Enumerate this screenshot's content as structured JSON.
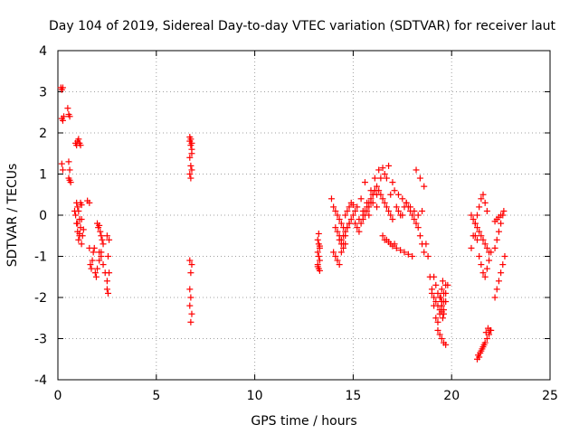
{
  "chart_data": {
    "type": "scatter",
    "title": "Day 104 of 2019, Sidereal Day-to-day VTEC variation (SDTVAR) for receiver laut",
    "xlabel": "GPS time / hours",
    "ylabel": "SDTVAR / TECUs",
    "xlim": [
      0,
      25
    ],
    "ylim": [
      -4,
      4
    ],
    "x_ticks": [
      0,
      5,
      10,
      15,
      20,
      25
    ],
    "y_ticks": [
      -4,
      -3,
      -2,
      -1,
      0,
      1,
      2,
      3,
      4
    ],
    "grid": true,
    "marker": "plus",
    "color": "#ff0000",
    "series": [
      {
        "name": "SDTVAR",
        "x": [
          0.15,
          0.2,
          0.25,
          0.2,
          0.25,
          0.3,
          0.2,
          0.25,
          0.5,
          0.55,
          0.6,
          0.55,
          0.6,
          0.55,
          0.65,
          0.6,
          0.9,
          0.95,
          1.0,
          1.05,
          1.1,
          1.15,
          0.85,
          0.9,
          0.95,
          1.0,
          1.05,
          1.1,
          1.15,
          1.2,
          0.95,
          1.0,
          1.05,
          1.1,
          1.15,
          1.2,
          1.25,
          1.3,
          1.0,
          1.1,
          1.2,
          1.5,
          1.6,
          1.6,
          1.65,
          1.7,
          1.75,
          1.8,
          1.85,
          1.9,
          1.95,
          2.0,
          2.1,
          2.2,
          2.0,
          2.05,
          2.1,
          2.15,
          2.2,
          2.25,
          2.3,
          2.1,
          2.2,
          2.3,
          2.4,
          2.5,
          2.5,
          2.55,
          2.6,
          2.55,
          2.5,
          2.6,
          6.7,
          6.7,
          6.75,
          6.75,
          6.8,
          6.8,
          6.7,
          6.75,
          6.8,
          6.7,
          6.75,
          6.8,
          6.8,
          6.75,
          6.7,
          6.75,
          6.7,
          6.8,
          6.75,
          6.7,
          13.2,
          13.25,
          13.3,
          13.2,
          13.25,
          13.3,
          13.2,
          13.25,
          13.3,
          13.25,
          13.2,
          13.3,
          13.9,
          14.0,
          14.1,
          14.2,
          14.3,
          14.4,
          14.5,
          14.6,
          14.7,
          14.8,
          14.9,
          15.0,
          14.0,
          14.1,
          14.2,
          14.3,
          14.4,
          14.5,
          14.6,
          14.7,
          14.8,
          14.9,
          15.0,
          15.1,
          14.1,
          14.2,
          14.3,
          14.4,
          14.5,
          14.6,
          14.7,
          14.8,
          14.3,
          14.4,
          14.5,
          14.6,
          15.1,
          15.2,
          15.3,
          15.4,
          15.5,
          15.6,
          15.7,
          15.8,
          15.9,
          16.0,
          16.1,
          16.2,
          16.3,
          16.4,
          16.5,
          16.6,
          16.7,
          16.8,
          16.9,
          17.0,
          15.2,
          15.4,
          15.6,
          15.8,
          16.0,
          16.2,
          16.4,
          16.6,
          16.8,
          17.0,
          15.3,
          15.5,
          15.7,
          15.9,
          16.1,
          16.3,
          16.5,
          16.7,
          16.9,
          15.5,
          15.6,
          15.7,
          15.8,
          15.9,
          16.0,
          16.1,
          16.2,
          16.5,
          16.6,
          16.7,
          16.8,
          16.9,
          17.0,
          17.1,
          17.2,
          17.3,
          17.4,
          17.5,
          17.6,
          17.7,
          17.8,
          17.9,
          18.0,
          18.1,
          18.2,
          18.3,
          18.4,
          18.5,
          18.6,
          17.2,
          17.4,
          17.6,
          17.8,
          18.0,
          18.2,
          18.4,
          18.6,
          17.1,
          17.3,
          17.5,
          17.7,
          17.9,
          18.1,
          18.3,
          18.5,
          18.7,
          18.8,
          18.9,
          19.0,
          19.1,
          19.2,
          19.3,
          19.4,
          19.5,
          19.6,
          19.7,
          19.8,
          19.0,
          19.1,
          19.2,
          19.3,
          19.4,
          19.5,
          19.6,
          19.7,
          19.1,
          19.2,
          19.3,
          19.4,
          19.5,
          19.6,
          19.7,
          19.3,
          19.4,
          19.5,
          19.6,
          19.7,
          19.6,
          19.55,
          19.5,
          19.45,
          19.5,
          19.55,
          21.0,
          21.1,
          21.2,
          21.3,
          21.4,
          21.5,
          21.6,
          21.7,
          21.8,
          21.0,
          21.1,
          21.2,
          21.3,
          21.4,
          21.5,
          21.6,
          21.7,
          21.8,
          21.9,
          21.2,
          21.3,
          21.4,
          21.5,
          21.6,
          21.7,
          21.8,
          21.9,
          22.0,
          21.3,
          21.4,
          21.5,
          21.6,
          21.7,
          21.8,
          21.9,
          22.0,
          21.35,
          21.45,
          21.55,
          21.65,
          21.75,
          21.85,
          21.95,
          22.2,
          22.3,
          22.4,
          22.5,
          22.6,
          22.7,
          22.2,
          22.3,
          22.4,
          22.5,
          22.6,
          22.65,
          22.2,
          22.3,
          22.4,
          22.5
        ],
        "y": [
          3.1,
          3.05,
          3.1,
          2.35,
          2.3,
          2.4,
          1.25,
          1.1,
          2.6,
          2.45,
          2.4,
          0.9,
          0.85,
          1.3,
          0.8,
          1.1,
          1.75,
          1.7,
          1.8,
          1.85,
          1.75,
          1.7,
          0.1,
          0.0,
          -0.2,
          -0.4,
          -0.6,
          -0.45,
          -0.3,
          -0.1,
          0.3,
          0.2,
          0.1,
          -0.1,
          0.3,
          0.25,
          -0.5,
          -0.35,
          -0.2,
          -0.5,
          -0.7,
          0.35,
          0.3,
          -0.8,
          -1.2,
          -1.3,
          -1.1,
          -0.9,
          -0.8,
          -1.4,
          -1.5,
          -1.3,
          -1.1,
          -0.9,
          -0.2,
          -0.3,
          -0.25,
          -0.4,
          -0.5,
          -0.6,
          -0.7,
          -0.9,
          -1.0,
          -1.2,
          -1.4,
          -1.6,
          -1.8,
          -1.9,
          -1.4,
          -1.0,
          -0.5,
          -0.6,
          1.9,
          1.8,
          1.85,
          1.7,
          1.6,
          1.5,
          1.4,
          1.2,
          1.1,
          1.0,
          0.9,
          1.75,
          -1.2,
          -1.4,
          -1.8,
          -2.0,
          -2.2,
          -2.4,
          -2.6,
          -1.1,
          -0.6,
          -0.7,
          -0.8,
          -0.9,
          -1.0,
          -1.1,
          -1.2,
          -1.3,
          -1.35,
          -0.45,
          -1.25,
          -0.75,
          0.4,
          0.2,
          0.1,
          0.0,
          -0.1,
          -0.2,
          -0.3,
          0.0,
          0.1,
          0.2,
          0.3,
          0.25,
          -0.9,
          -1.0,
          -1.1,
          -1.2,
          -0.9,
          -0.7,
          -0.5,
          -0.3,
          -0.2,
          -0.1,
          0.0,
          0.1,
          -0.3,
          -0.4,
          -0.5,
          -0.6,
          -0.5,
          -0.4,
          -0.3,
          -0.2,
          -0.6,
          -0.7,
          -0.8,
          -0.7,
          -0.2,
          -0.3,
          -0.4,
          -0.2,
          -0.1,
          0.0,
          0.1,
          0.2,
          0.3,
          0.5,
          0.6,
          0.7,
          0.6,
          0.5,
          0.4,
          0.3,
          0.2,
          0.1,
          0.0,
          -0.1,
          0.2,
          0.4,
          0.8,
          0.0,
          0.3,
          0.5,
          0.9,
          1.0,
          1.2,
          0.8,
          -0.1,
          0.1,
          0.3,
          0.6,
          0.9,
          1.1,
          1.15,
          0.9,
          0.5,
          0.0,
          0.1,
          0.2,
          0.3,
          0.4,
          0.5,
          0.6,
          0.2,
          -0.5,
          -0.6,
          -0.6,
          -0.65,
          -0.7,
          -0.75,
          -0.7,
          0.2,
          0.1,
          0.0,
          0.0,
          0.2,
          0.3,
          0.2,
          0.1,
          0.0,
          -0.1,
          -0.2,
          -0.3,
          -0.5,
          -0.7,
          -0.9,
          -0.8,
          -0.85,
          -0.9,
          -0.95,
          -1.0,
          1.1,
          0.9,
          0.7,
          0.6,
          0.5,
          0.4,
          0.3,
          0.2,
          0.1,
          0.0,
          0.1,
          -0.7,
          -1.0,
          -1.5,
          -1.9,
          -2.2,
          -2.5,
          -2.6,
          -2.4,
          -2.2,
          -2.1,
          -1.9,
          -1.7,
          -1.8,
          -2.0,
          -2.1,
          -2.2,
          -2.3,
          -2.1,
          -1.9,
          -1.7,
          -1.5,
          -1.7,
          -1.9,
          -2.0,
          -2.2,
          -2.3,
          -2.1,
          -2.8,
          -2.9,
          -3.0,
          -3.1,
          -3.15,
          -2.4,
          -2.5,
          -2.35,
          -2.0,
          -1.8,
          -1.6,
          -0.8,
          -0.5,
          -0.2,
          0.0,
          0.2,
          0.4,
          0.5,
          0.3,
          0.1,
          0.0,
          -0.1,
          -0.2,
          -0.3,
          -0.4,
          -0.5,
          -0.6,
          -0.7,
          -0.8,
          -0.9,
          -0.5,
          -0.6,
          -1.0,
          -1.2,
          -1.4,
          -1.5,
          -1.3,
          -1.1,
          -0.9,
          -3.5,
          -3.45,
          -3.3,
          -3.2,
          -3.1,
          -3.0,
          -2.9,
          -2.8,
          -3.4,
          -3.35,
          -3.25,
          -3.15,
          -2.85,
          -2.75,
          -2.8,
          -2.0,
          -1.8,
          -1.6,
          -1.4,
          -1.2,
          -1.0,
          -0.8,
          -0.6,
          -0.4,
          -0.2,
          0.0,
          0.1,
          -0.15,
          -0.1,
          -0.05,
          0.0
        ]
      }
    ]
  }
}
